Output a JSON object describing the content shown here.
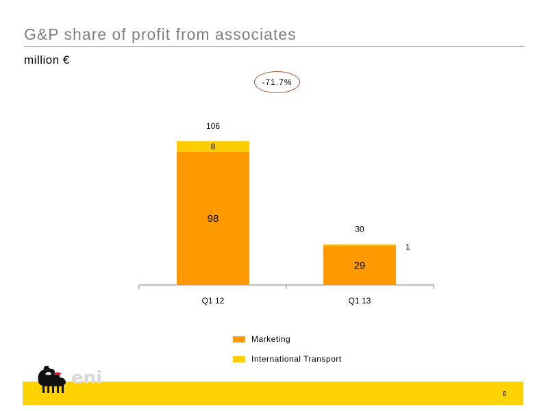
{
  "slide": {
    "title": "G&P share of profit from associates",
    "subtitle": "million €",
    "change_badge": "-71.7%",
    "page_number": "6",
    "logo_text": "eni"
  },
  "colors": {
    "marketing": "#ff9900",
    "international_transport": "#ffcc00",
    "footer": "#ffd200",
    "badge_border": "#a0522d"
  },
  "chart_data": {
    "type": "bar",
    "stacked": true,
    "categories": [
      "Q1 12",
      "Q1 13"
    ],
    "series": [
      {
        "name": "Marketing",
        "values": [
          98,
          29
        ],
        "color": "#ff9900"
      },
      {
        "name": "International Transport",
        "values": [
          8,
          1
        ],
        "color": "#ffcc00"
      }
    ],
    "totals": [
      106,
      30
    ],
    "segment_labels": [
      [
        "98",
        "8"
      ],
      [
        "29",
        "1"
      ]
    ],
    "total_labels": [
      "106",
      "30"
    ],
    "legend": [
      "Marketing",
      "International Transport"
    ],
    "legend_position": "bottom-center",
    "ylim": [
      0,
      130
    ],
    "grid": false,
    "title": "",
    "xlabel": "",
    "ylabel": ""
  }
}
